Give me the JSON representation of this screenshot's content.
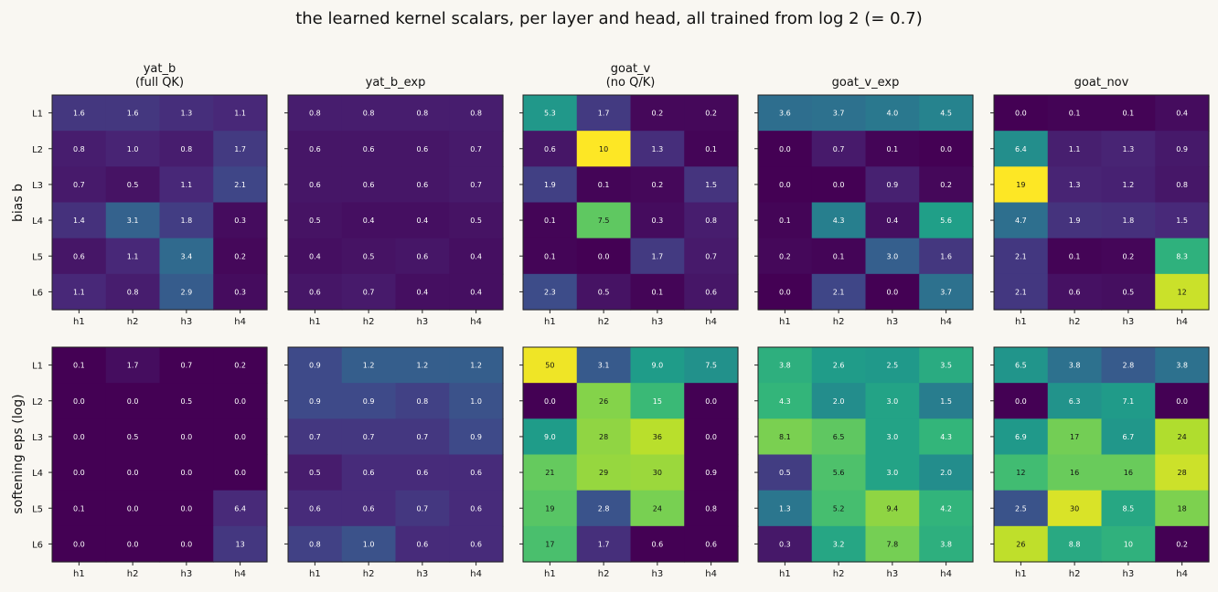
{
  "suptitle": "the learned kernel scalars, per layer and head, all trained from log 2 (= 0.7)",
  "rows": [
    "bias b",
    "softening eps (log)"
  ],
  "colormap": "viridis",
  "chart_data": [
    {
      "type": "heatmap",
      "row": "bias b",
      "title": [
        "yat_b",
        "(full QK)"
      ],
      "x_categories": [
        "h1",
        "h2",
        "h3",
        "h4"
      ],
      "y_categories": [
        "L1",
        "L2",
        "L3",
        "L4",
        "L5",
        "L6"
      ],
      "values": [
        [
          1.6,
          1.6,
          1.3,
          1.1
        ],
        [
          0.8,
          1.0,
          0.8,
          1.7
        ],
        [
          0.7,
          0.5,
          1.1,
          2.1
        ],
        [
          1.4,
          3.1,
          1.8,
          0.3
        ],
        [
          0.6,
          1.1,
          3.4,
          0.2
        ],
        [
          1.1,
          0.8,
          2.9,
          0.3
        ]
      ],
      "labels": [
        [
          "1.6",
          "1.6",
          "1.3",
          "1.1"
        ],
        [
          "0.8",
          "1.0",
          "0.8",
          "1.7"
        ],
        [
          "0.7",
          "0.5",
          "1.1",
          "2.1"
        ],
        [
          "1.4",
          "3.1",
          "1.8",
          "0.3"
        ],
        [
          "0.6",
          "1.1",
          "3.4",
          "0.2"
        ],
        [
          "1.1",
          "0.8",
          "2.9",
          "0.3"
        ]
      ],
      "vmin": 0,
      "vmax": 10
    },
    {
      "type": "heatmap",
      "row": "bias b",
      "title": [
        "yat_b_exp"
      ],
      "x_categories": [
        "h1",
        "h2",
        "h3",
        "h4"
      ],
      "y_categories": [
        "L1",
        "L2",
        "L3",
        "L4",
        "L5",
        "L6"
      ],
      "values": [
        [
          0.8,
          0.8,
          0.8,
          0.8
        ],
        [
          0.6,
          0.6,
          0.6,
          0.7
        ],
        [
          0.6,
          0.6,
          0.6,
          0.7
        ],
        [
          0.5,
          0.4,
          0.4,
          0.5
        ],
        [
          0.4,
          0.5,
          0.6,
          0.4
        ],
        [
          0.6,
          0.7,
          0.4,
          0.4
        ]
      ],
      "labels": [
        [
          "0.8",
          "0.8",
          "0.8",
          "0.8"
        ],
        [
          "0.6",
          "0.6",
          "0.6",
          "0.7"
        ],
        [
          "0.6",
          "0.6",
          "0.6",
          "0.7"
        ],
        [
          "0.5",
          "0.4",
          "0.4",
          "0.5"
        ],
        [
          "0.4",
          "0.5",
          "0.6",
          "0.4"
        ],
        [
          "0.6",
          "0.7",
          "0.4",
          "0.4"
        ]
      ],
      "vmin": 0,
      "vmax": 10
    },
    {
      "type": "heatmap",
      "row": "bias b",
      "title": [
        "goat_v",
        "(no Q/K)"
      ],
      "x_categories": [
        "h1",
        "h2",
        "h3",
        "h4"
      ],
      "y_categories": [
        "L1",
        "L2",
        "L3",
        "L4",
        "L5",
        "L6"
      ],
      "values": [
        [
          5.3,
          1.7,
          0.2,
          0.2
        ],
        [
          0.6,
          10,
          1.3,
          0.1
        ],
        [
          1.9,
          0.1,
          0.2,
          1.5
        ],
        [
          0.1,
          7.5,
          0.3,
          0.8
        ],
        [
          0.1,
          0.0,
          1.7,
          0.7
        ],
        [
          2.3,
          0.5,
          0.1,
          0.6
        ]
      ],
      "labels": [
        [
          "5.3",
          "1.7",
          "0.2",
          "0.2"
        ],
        [
          "0.6",
          "10",
          "1.3",
          "0.1"
        ],
        [
          "1.9",
          "0.1",
          "0.2",
          "1.5"
        ],
        [
          "0.1",
          "7.5",
          "0.3",
          "0.8"
        ],
        [
          "0.1",
          "0.0",
          "1.7",
          "0.7"
        ],
        [
          "2.3",
          "0.5",
          "0.1",
          "0.6"
        ]
      ],
      "vmin": 0,
      "vmax": 10
    },
    {
      "type": "heatmap",
      "row": "bias b",
      "title": [
        "goat_v_exp"
      ],
      "x_categories": [
        "h1",
        "h2",
        "h3",
        "h4"
      ],
      "y_categories": [
        "L1",
        "L2",
        "L3",
        "L4",
        "L5",
        "L6"
      ],
      "values": [
        [
          3.6,
          3.7,
          4.0,
          4.5
        ],
        [
          0.0,
          0.7,
          0.1,
          0.0
        ],
        [
          0.0,
          0.0,
          0.9,
          0.2
        ],
        [
          0.1,
          4.3,
          0.4,
          5.6
        ],
        [
          0.2,
          0.1,
          3.0,
          1.6
        ],
        [
          0.0,
          2.1,
          0.0,
          3.7
        ]
      ],
      "labels": [
        [
          "3.6",
          "3.7",
          "4.0",
          "4.5"
        ],
        [
          "0.0",
          "0.7",
          "0.1",
          "0.0"
        ],
        [
          "0.0",
          "0.0",
          "0.9",
          "0.2"
        ],
        [
          "0.1",
          "4.3",
          "0.4",
          "5.6"
        ],
        [
          "0.2",
          "0.1",
          "3.0",
          "1.6"
        ],
        [
          "0.0",
          "2.1",
          "0.0",
          "3.7"
        ]
      ],
      "vmin": 0,
      "vmax": 10
    },
    {
      "type": "heatmap",
      "row": "bias b",
      "title": [
        "goat_nov"
      ],
      "x_categories": [
        "h1",
        "h2",
        "h3",
        "h4"
      ],
      "y_categories": [
        "L1",
        "L2",
        "L3",
        "L4",
        "L5",
        "L6"
      ],
      "values": [
        [
          0.0,
          0.1,
          0.1,
          0.4
        ],
        [
          6.4,
          1.1,
          1.3,
          0.9
        ],
        [
          19,
          1.3,
          1.2,
          0.8
        ],
        [
          4.7,
          1.9,
          1.8,
          1.5
        ],
        [
          2.1,
          0.1,
          0.2,
          8.3
        ],
        [
          2.1,
          0.6,
          0.5,
          12
        ]
      ],
      "labels": [
        [
          "0.0",
          "0.1",
          "0.1",
          "0.4"
        ],
        [
          "6.4",
          "1.1",
          "1.3",
          "0.9"
        ],
        [
          "19",
          "1.3",
          "1.2",
          "0.8"
        ],
        [
          "4.7",
          "1.9",
          "1.8",
          "1.5"
        ],
        [
          "2.1",
          "0.1",
          "0.2",
          "8.3"
        ],
        [
          "2.1",
          "0.6",
          "0.5",
          "12"
        ]
      ],
      "vmin": 0,
      "vmax": 13
    },
    {
      "type": "heatmap",
      "row": "softening eps (log)",
      "title": [],
      "x_categories": [
        "h1",
        "h2",
        "h3",
        "h4"
      ],
      "y_categories": [
        "L1",
        "L2",
        "L3",
        "L4",
        "L5",
        "L6"
      ],
      "values": [
        [
          0.1,
          1.7,
          0.7,
          0.2
        ],
        [
          0.0,
          0.0,
          0.5,
          0.0
        ],
        [
          0.0,
          0.5,
          0.0,
          0.0
        ],
        [
          0.0,
          0.0,
          0.0,
          0.0
        ],
        [
          0.1,
          0.0,
          0.0,
          6.4
        ],
        [
          0.0,
          0.0,
          0.0,
          13
        ]
      ],
      "labels": [
        [
          "0.1",
          "1.7",
          "0.7",
          "0.2"
        ],
        [
          "0.0",
          "0.0",
          "0.5",
          "0.0"
        ],
        [
          "0.0",
          "0.5",
          "0.0",
          "0.0"
        ],
        [
          "0.0",
          "0.0",
          "0.0",
          "0.0"
        ],
        [
          "0.1",
          "0.0",
          "0.0",
          "6.4"
        ],
        [
          "0.0",
          "0.0",
          "0.0",
          "13"
        ]
      ],
      "vmin": 0,
      "vmax": 16
    },
    {
      "type": "heatmap",
      "row": "softening eps (log)",
      "title": [],
      "x_categories": [
        "h1",
        "h2",
        "h3",
        "h4"
      ],
      "y_categories": [
        "L1",
        "L2",
        "L3",
        "L4",
        "L5",
        "L6"
      ],
      "values": [
        [
          0.9,
          1.2,
          1.2,
          1.2
        ],
        [
          0.9,
          0.9,
          0.8,
          1.0
        ],
        [
          0.7,
          0.7,
          0.7,
          0.9
        ],
        [
          0.5,
          0.6,
          0.6,
          0.6
        ],
        [
          0.6,
          0.6,
          0.7,
          0.6
        ],
        [
          0.8,
          1.0,
          0.6,
          0.6
        ]
      ],
      "labels": [
        [
          "0.9",
          "1.2",
          "1.2",
          "1.2"
        ],
        [
          "0.9",
          "0.9",
          "0.8",
          "1.0"
        ],
        [
          "0.7",
          "0.7",
          "0.7",
          "0.9"
        ],
        [
          "0.5",
          "0.6",
          "0.6",
          "0.6"
        ],
        [
          "0.6",
          "0.6",
          "0.7",
          "0.6"
        ],
        [
          "0.8",
          "1.0",
          "0.6",
          "0.6"
        ]
      ],
      "vmin": -1,
      "vmax": 3
    },
    {
      "type": "heatmap",
      "row": "softening eps (log)",
      "title": [],
      "x_categories": [
        "h1",
        "h2",
        "h3",
        "h4"
      ],
      "y_categories": [
        "L1",
        "L2",
        "L3",
        "L4",
        "L5",
        "L6"
      ],
      "values": [
        [
          50,
          3.1,
          9.0,
          7.5
        ],
        [
          0.0,
          26,
          15,
          0.0
        ],
        [
          9.0,
          28,
          36,
          0.0
        ],
        [
          21,
          29,
          30,
          0.9
        ],
        [
          19,
          2.8,
          24,
          0.8
        ],
        [
          17,
          1.7,
          0.6,
          0.6
        ]
      ],
      "labels": [
        [
          "50",
          "3.1",
          "9.0",
          "7.5"
        ],
        [
          "0.0",
          "26",
          "15",
          "0.0"
        ],
        [
          "9.0",
          "28",
          "36",
          "0.0"
        ],
        [
          "21",
          "29",
          "30",
          "0.9"
        ],
        [
          "19",
          "2.8",
          "24",
          "0.8"
        ],
        [
          "17",
          "1.7",
          "0.6",
          "0.6"
        ]
      ],
      "vmin": 0,
      "vmax": 4
    },
    {
      "type": "heatmap",
      "row": "softening eps (log)",
      "title": [],
      "x_categories": [
        "h1",
        "h2",
        "h3",
        "h4"
      ],
      "y_categories": [
        "L1",
        "L2",
        "L3",
        "L4",
        "L5",
        "L6"
      ],
      "values": [
        [
          3.8,
          2.6,
          2.5,
          3.5
        ],
        [
          4.3,
          2.0,
          3.0,
          1.5
        ],
        [
          8.1,
          6.5,
          3.0,
          4.3
        ],
        [
          0.5,
          5.6,
          3.0,
          2.0
        ],
        [
          1.3,
          5.2,
          9.4,
          4.2
        ],
        [
          0.3,
          3.2,
          7.8,
          3.8
        ]
      ],
      "labels": [
        [
          "3.8",
          "2.6",
          "2.5",
          "3.5"
        ],
        [
          "4.3",
          "2.0",
          "3.0",
          "1.5"
        ],
        [
          "8.1",
          "6.5",
          "3.0",
          "4.3"
        ],
        [
          "0.5",
          "5.6",
          "3.0",
          "2.0"
        ],
        [
          "1.3",
          "5.2",
          "9.4",
          "4.2"
        ],
        [
          "0.3",
          "3.2",
          "7.8",
          "3.8"
        ]
      ],
      "vmin": -1.5,
      "vmax": 3.0
    },
    {
      "type": "heatmap",
      "row": "softening eps (log)",
      "title": [],
      "x_categories": [
        "h1",
        "h2",
        "h3",
        "h4"
      ],
      "y_categories": [
        "L1",
        "L2",
        "L3",
        "L4",
        "L5",
        "L6"
      ],
      "values": [
        [
          6.5,
          3.8,
          2.8,
          3.8
        ],
        [
          0.0,
          6.3,
          7.1,
          0.0
        ],
        [
          6.9,
          17,
          6.7,
          24
        ],
        [
          12,
          16,
          16,
          28
        ],
        [
          2.5,
          30,
          8.5,
          18
        ],
        [
          26,
          8.8,
          10,
          0.2
        ]
      ],
      "labels": [
        [
          "6.5",
          "3.8",
          "2.8",
          "3.8"
        ],
        [
          "0.0",
          "6.3",
          "7.1",
          "0.0"
        ],
        [
          "6.9",
          "17",
          "6.7",
          "24"
        ],
        [
          "12",
          "16",
          "16",
          "28"
        ],
        [
          "2.5",
          "30",
          "8.5",
          "18"
        ],
        [
          "26",
          "8.8",
          "10",
          "0.2"
        ]
      ],
      "vmin": 0,
      "vmax": 3.6
    }
  ]
}
